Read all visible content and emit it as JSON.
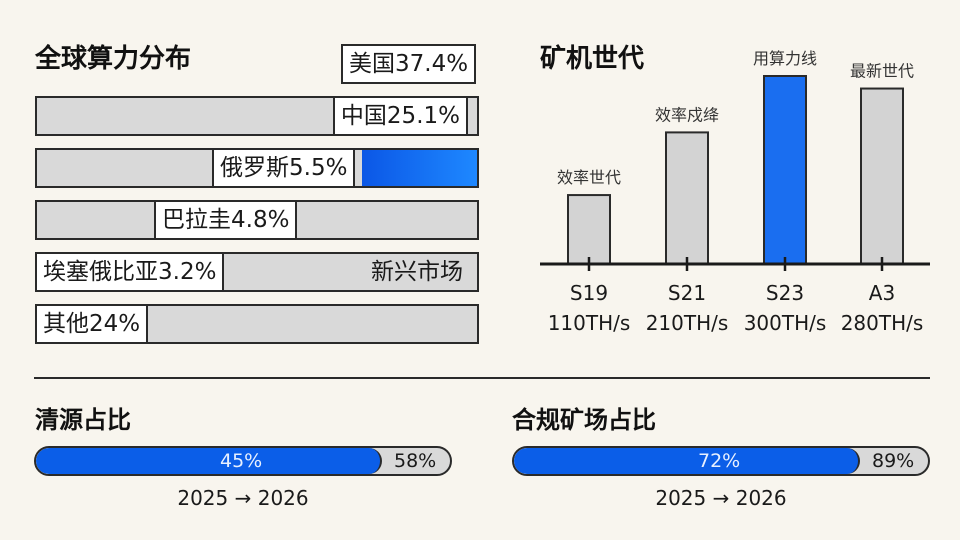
{
  "hashrate": {
    "title": "全球算力分布",
    "top_label": "美国37.4%",
    "rows": [
      {
        "label": "中国25.1%",
        "value": 25.1
      },
      {
        "label": "俄罗斯5.5%",
        "value": 5.5
      },
      {
        "label": "巴拉圭4.8%",
        "value": 4.8
      },
      {
        "label": "埃塞俄比亚3.2%",
        "value": 3.2,
        "note": "新兴市场"
      },
      {
        "label": "其他24%",
        "value": 24
      }
    ]
  },
  "chart_data": {
    "type": "bar",
    "title": "矿机世代",
    "categories": [
      "S19",
      "S21",
      "S23",
      "A3"
    ],
    "values": [
      110,
      210,
      300,
      280
    ],
    "value_labels": [
      "110TH/s",
      "210TH/s",
      "300TH/s",
      "280TH/s"
    ],
    "annotations": [
      "效率世代",
      "效率戍绛",
      "用算力线",
      "最新世代"
    ],
    "highlight_index": 2,
    "colors": {
      "bar": "#d3d3d3",
      "highlight": "#1a6ef0"
    }
  },
  "progress": [
    {
      "title": "清源占比",
      "value": "45%",
      "target": "58%",
      "fill": 0.45,
      "caption": "2025 → 2026"
    },
    {
      "title": "合规矿场占比",
      "value": "72%",
      "target": "89%",
      "fill": 0.72,
      "caption": "2025 → 2026"
    }
  ],
  "colors": {
    "accent": "#0b5ee8",
    "background": "#f8f5ee",
    "bar_bg": "#d9d9d9"
  }
}
